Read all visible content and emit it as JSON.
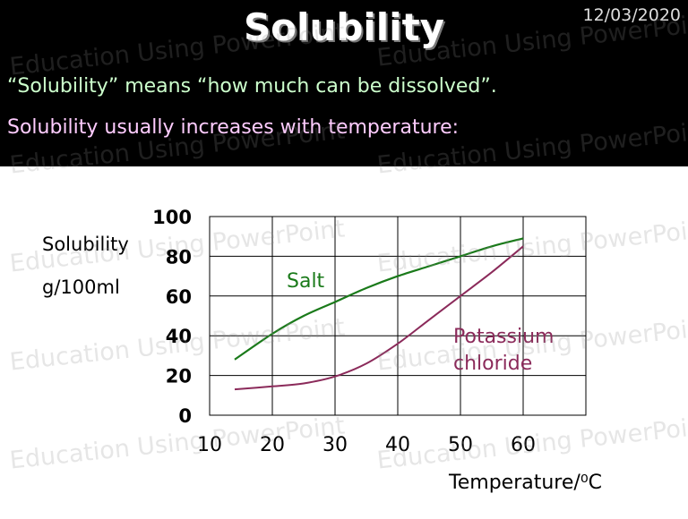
{
  "slide": {
    "title": "Solubility",
    "date": "12/03/2020",
    "line1": "“Solubility” means “how much can be dissolved”.",
    "line2": "Solubility usually increases with temperature:",
    "watermark": "Education Using PowerPoint"
  },
  "colors": {
    "header_bg": "#000000",
    "salt": "#1a7a1a",
    "potassium_chloride": "#8b2a5a",
    "grid": "#000000"
  },
  "chart_data": {
    "type": "line",
    "xlabel": "Temperature/⁰C",
    "ylabel_line1": "Solubility",
    "ylabel_line2": "g/100ml",
    "xlim": [
      10,
      70
    ],
    "ylim": [
      0,
      100
    ],
    "xticks": [
      10,
      20,
      30,
      40,
      50,
      60
    ],
    "yticks": [
      0,
      20,
      40,
      60,
      80,
      100
    ],
    "grid": true,
    "series": [
      {
        "name": "Salt",
        "color": "#1a7a1a",
        "x": [
          14,
          20,
          25,
          30,
          35,
          40,
          45,
          50,
          55,
          60
        ],
        "y": [
          28,
          41,
          50,
          57,
          64,
          70,
          75,
          80,
          85,
          89
        ]
      },
      {
        "name": "Potassium chloride",
        "label_line1": "Potassium",
        "label_line2": "chloride",
        "color": "#8b2a5a",
        "x": [
          14,
          20,
          25,
          30,
          35,
          40,
          45,
          50,
          55,
          60
        ],
        "y": [
          13,
          14.5,
          16,
          19.5,
          26,
          36,
          48,
          60,
          72,
          85
        ]
      }
    ]
  }
}
